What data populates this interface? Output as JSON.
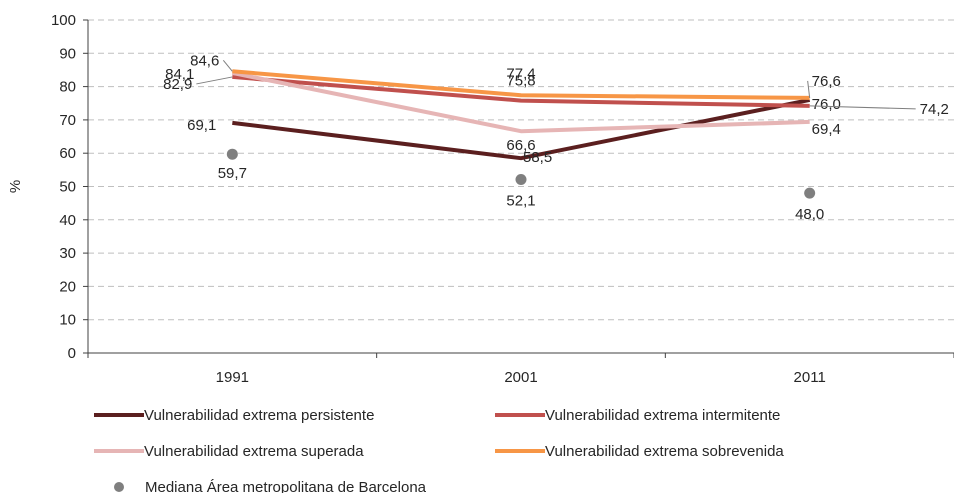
{
  "chart_data": {
    "type": "line",
    "categories": [
      "1991",
      "2001",
      "2011"
    ],
    "ylabel": "%",
    "ylim": [
      0,
      100
    ],
    "yticks": [
      0,
      10,
      20,
      30,
      40,
      50,
      60,
      70,
      80,
      90,
      100
    ],
    "grid": true,
    "legend_position": "bottom",
    "series": [
      {
        "name": "Vulnerabilidad extrema persistente",
        "color": "#5B1F1F",
        "values": [
          69.1,
          58.5,
          76.0
        ],
        "labels": [
          "69,1",
          "58,5",
          "76,0"
        ]
      },
      {
        "name": "Vulnerabilidad extrema intermitente",
        "color": "#C0504D",
        "values": [
          82.9,
          75.8,
          74.2
        ],
        "labels": [
          "82,9",
          "75,8",
          "74,2"
        ]
      },
      {
        "name": "Vulnerabilidad extrema superada",
        "color": "#E6B5B5",
        "values": [
          84.1,
          66.6,
          69.4
        ],
        "labels": [
          "84,1",
          "66,6",
          "69,4"
        ]
      },
      {
        "name": "Vulnerabilidad extrema sobrevenida",
        "color": "#F79646",
        "values": [
          84.6,
          77.4,
          76.6
        ],
        "labels": [
          "84,6",
          "77,4",
          "76,6"
        ]
      }
    ],
    "points": {
      "name": "Mediana Área metropolitana de Barcelona",
      "color": "#7F7F7F",
      "values": [
        59.7,
        52.1,
        48.0
      ],
      "labels": [
        "59,7",
        "52,1",
        "48,0"
      ]
    }
  }
}
